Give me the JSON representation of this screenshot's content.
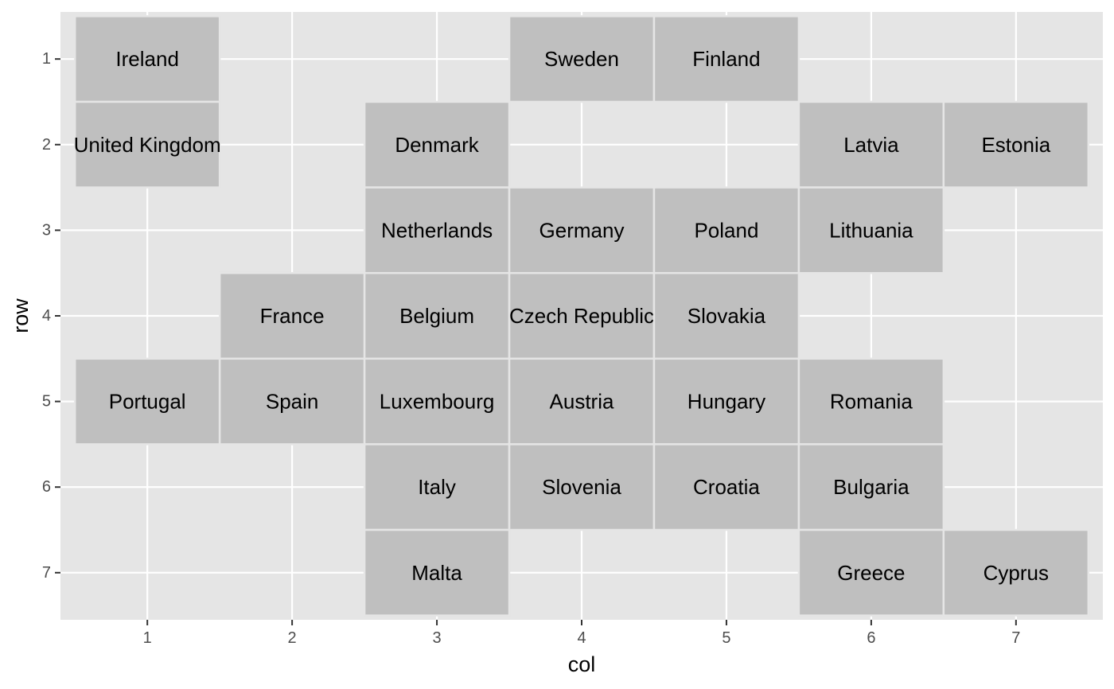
{
  "chart_data": {
    "type": "heatmap",
    "title": "",
    "xlabel": "col",
    "ylabel": "row",
    "xlim": [
      0.4,
      7.6
    ],
    "ylim": [
      0.45,
      7.55
    ],
    "y_reversed": true,
    "x_ticks": [
      1,
      2,
      3,
      4,
      5,
      6,
      7
    ],
    "y_ticks": [
      1,
      2,
      3,
      4,
      5,
      6,
      7
    ],
    "grid": true,
    "colors": {
      "panel": "#e5e5e5",
      "tile": "#bfbfbf",
      "tile_border": "#e5e5e5",
      "grid": "#ffffff"
    },
    "tiles": [
      {
        "name": "Ireland",
        "col": 1,
        "row": 1
      },
      {
        "name": "Sweden",
        "col": 4,
        "row": 1
      },
      {
        "name": "Finland",
        "col": 5,
        "row": 1
      },
      {
        "name": "United Kingdom",
        "col": 1,
        "row": 2
      },
      {
        "name": "Denmark",
        "col": 3,
        "row": 2
      },
      {
        "name": "Latvia",
        "col": 6,
        "row": 2
      },
      {
        "name": "Estonia",
        "col": 7,
        "row": 2
      },
      {
        "name": "Netherlands",
        "col": 3,
        "row": 3
      },
      {
        "name": "Germany",
        "col": 4,
        "row": 3
      },
      {
        "name": "Poland",
        "col": 5,
        "row": 3
      },
      {
        "name": "Lithuania",
        "col": 6,
        "row": 3
      },
      {
        "name": "France",
        "col": 2,
        "row": 4
      },
      {
        "name": "Belgium",
        "col": 3,
        "row": 4
      },
      {
        "name": "Czech Republic",
        "col": 4,
        "row": 4
      },
      {
        "name": "Slovakia",
        "col": 5,
        "row": 4
      },
      {
        "name": "Portugal",
        "col": 1,
        "row": 5
      },
      {
        "name": "Spain",
        "col": 2,
        "row": 5
      },
      {
        "name": "Luxembourg",
        "col": 3,
        "row": 5
      },
      {
        "name": "Austria",
        "col": 4,
        "row": 5
      },
      {
        "name": "Hungary",
        "col": 5,
        "row": 5
      },
      {
        "name": "Romania",
        "col": 6,
        "row": 5
      },
      {
        "name": "Italy",
        "col": 3,
        "row": 6
      },
      {
        "name": "Slovenia",
        "col": 4,
        "row": 6
      },
      {
        "name": "Croatia",
        "col": 5,
        "row": 6
      },
      {
        "name": "Bulgaria",
        "col": 6,
        "row": 6
      },
      {
        "name": "Malta",
        "col": 3,
        "row": 7
      },
      {
        "name": "Greece",
        "col": 6,
        "row": 7
      },
      {
        "name": "Cyprus",
        "col": 7,
        "row": 7
      }
    ]
  }
}
